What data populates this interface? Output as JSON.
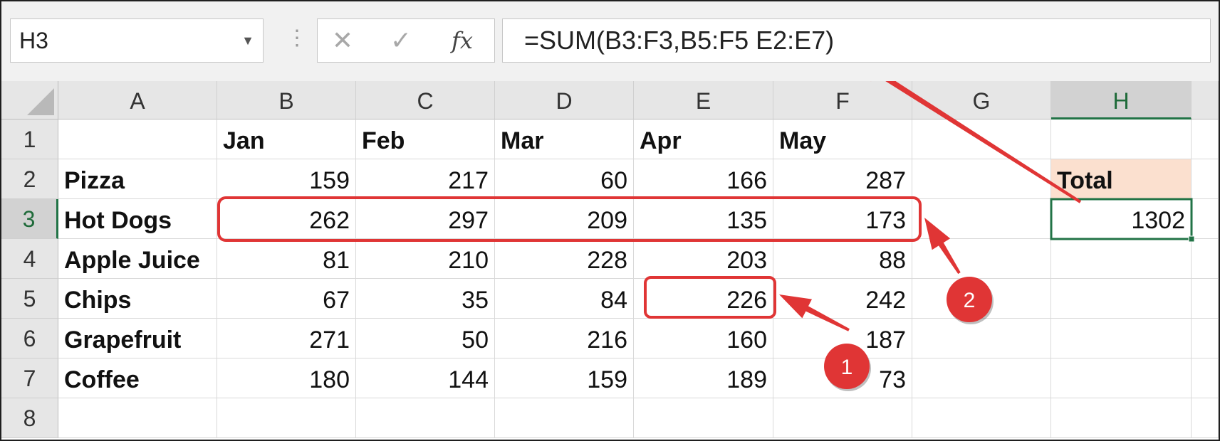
{
  "name_box": {
    "value": "H3"
  },
  "formula_bar": {
    "cancel_icon": "close-icon",
    "enter_icon": "check-icon",
    "fx_label": "fx",
    "formula": "=SUM(B3:F3,B5:F5 E2:E7)"
  },
  "columns": [
    "A",
    "B",
    "C",
    "D",
    "E",
    "F",
    "G",
    "H"
  ],
  "rows": [
    "1",
    "2",
    "3",
    "4",
    "5",
    "6",
    "7",
    "8"
  ],
  "selected": {
    "column": "H",
    "row": "3"
  },
  "header_row": {
    "jan": "Jan",
    "feb": "Feb",
    "mar": "Mar",
    "apr": "Apr",
    "may": "May"
  },
  "data_rows": [
    {
      "item": "Pizza",
      "values": [
        "159",
        "217",
        "60",
        "166",
        "287"
      ]
    },
    {
      "item": "Hot Dogs",
      "values": [
        "262",
        "297",
        "209",
        "135",
        "173"
      ]
    },
    {
      "item": "Apple Juice",
      "values": [
        "81",
        "210",
        "228",
        "203",
        "88"
      ]
    },
    {
      "item": "Chips",
      "values": [
        "67",
        "35",
        "84",
        "226",
        "242"
      ]
    },
    {
      "item": "Grapefruit",
      "values": [
        "271",
        "50",
        "216",
        "160",
        "187"
      ]
    },
    {
      "item": "Coffee",
      "values": [
        "180",
        "144",
        "159",
        "189",
        "73"
      ]
    }
  ],
  "total": {
    "label": "Total",
    "value": "1302"
  },
  "annotations": {
    "marker_1": "1",
    "marker_2": "2"
  },
  "colors": {
    "selection_green": "#217346",
    "total_fill": "#fbe0cf",
    "annotation_red": "#e03535"
  }
}
